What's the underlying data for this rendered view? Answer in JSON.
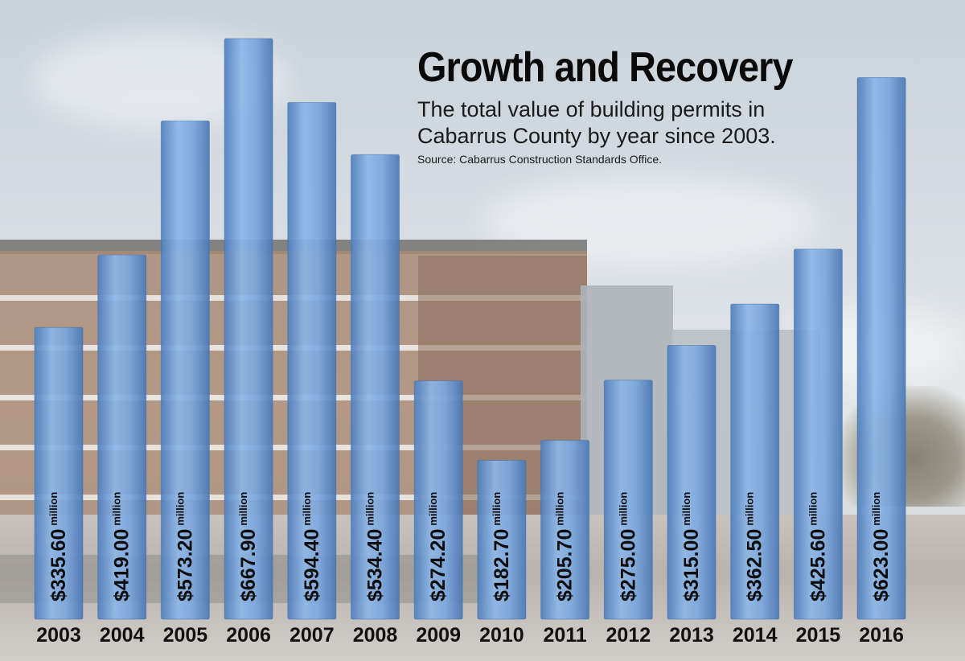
{
  "chart_data": {
    "type": "bar",
    "title": "Growth and Recovery",
    "subtitle": "The total value of building permits in Cabarrus County by year since 2003.",
    "source": "Source: Cabarrus Construction Standards Office.",
    "categories": [
      "2003",
      "2004",
      "2005",
      "2006",
      "2007",
      "2008",
      "2009",
      "2010",
      "2011",
      "2012",
      "2013",
      "2014",
      "2015",
      "2016"
    ],
    "values": [
      335.6,
      419.0,
      573.2,
      667.9,
      594.4,
      534.4,
      274.2,
      182.7,
      205.7,
      275.0,
      315.0,
      362.5,
      425.6,
      623.0
    ],
    "value_labels": [
      "$335.60",
      "$419.00",
      "$573.20",
      "$667.90",
      "$594.40",
      "$534.40",
      "$274.20",
      "$182.70",
      "$205.70",
      "$275.00",
      "$315.00",
      "$362.50",
      "$425.60",
      "$623.00"
    ],
    "value_unit": "million",
    "grid": false,
    "legend": "none",
    "bar_color": "#6f9fd8"
  }
}
